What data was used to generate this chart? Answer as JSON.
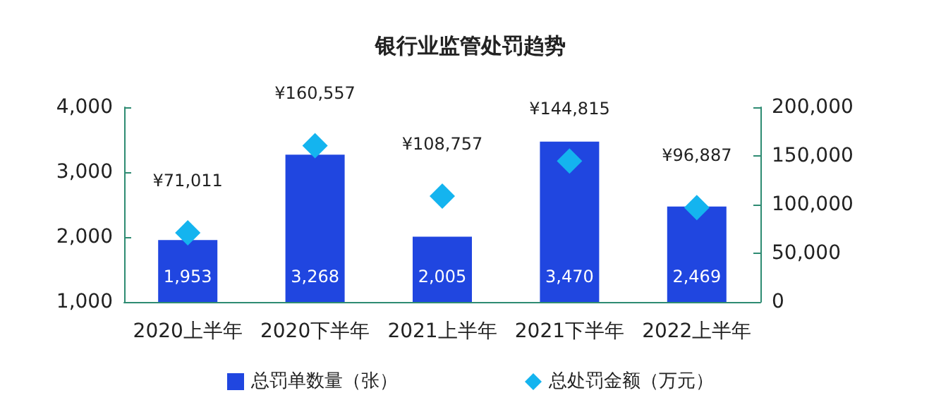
{
  "chart_data": {
    "type": "bar",
    "title": "银行业监管处罚趋势",
    "categories": [
      "2020上半年",
      "2020下半年",
      "2021上半年",
      "2021下半年",
      "2022上半年"
    ],
    "series": [
      {
        "name": "总罚单数量（张）",
        "color": "#2046e0",
        "values": [
          1953,
          3268,
          2005,
          3470,
          2469
        ],
        "value_labels": [
          "1,953",
          "3,268",
          "2,005",
          "3,470",
          "2,469"
        ]
      },
      {
        "name": "总处罚金额（万元）",
        "type": "scatter",
        "axis": "y2",
        "marker": "diamond",
        "color": "#14b4ef",
        "values": [
          71011,
          160557,
          108757,
          144815,
          96887
        ],
        "value_labels": [
          "¥71,011",
          "¥160,557",
          "¥108,757",
          "¥144,815",
          "¥96,887"
        ]
      }
    ],
    "ylim": [
      1000,
      4000
    ],
    "yticks": [
      {
        "value": 1000,
        "label": "1,000"
      },
      {
        "value": 2000,
        "label": "2,000"
      },
      {
        "value": 3000,
        "label": "3,000"
      },
      {
        "value": 4000,
        "label": "4,000"
      }
    ],
    "y2lim": [
      0,
      200000
    ],
    "y2ticks": [
      0,
      {
        "value": 50000,
        "label": "50,000"
      },
      {
        "value": 100000,
        "label": "100,000"
      },
      {
        "value": 150000,
        "label": "150,000"
      },
      {
        "value": 200000,
        "label": "200,000"
      }
    ],
    "grid": false,
    "legend": "bottom"
  }
}
